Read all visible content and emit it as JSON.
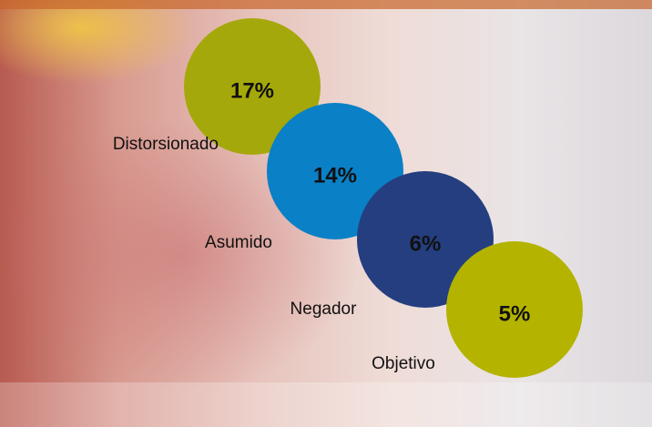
{
  "chart_data": {
    "type": "bubble",
    "categories": [
      "Distorsionado",
      "Asumido",
      "Negador",
      "Objetivo"
    ],
    "values": [
      17,
      14,
      6,
      5
    ],
    "value_labels": [
      "17%",
      "14%",
      "6%",
      "5%"
    ],
    "colors": [
      "#a5a80a",
      "#0a80c6",
      "#243e80",
      "#b3b300"
    ]
  }
}
